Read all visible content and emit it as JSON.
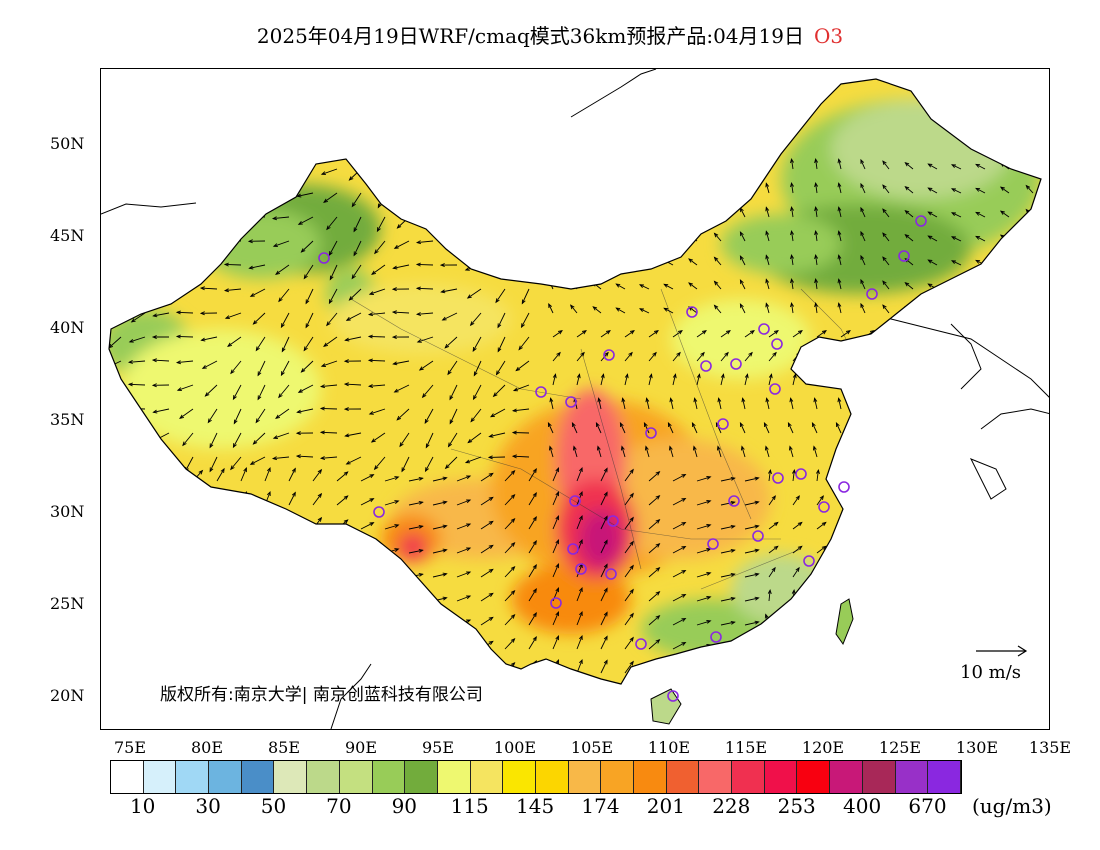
{
  "title": {
    "text": "2025年04月19日WRF/cmaq模式36km预报产品:04月19日",
    "species": "O3"
  },
  "axes": {
    "lat_labels": [
      "50N",
      "45N",
      "40N",
      "35N",
      "30N",
      "25N",
      "20N"
    ],
    "lon_labels": [
      "75E",
      "80E",
      "85E",
      "90E",
      "95E",
      "100E",
      "105E",
      "110E",
      "115E",
      "120E",
      "125E",
      "130E",
      "135E"
    ],
    "lon_range": [
      73.5,
      135
    ],
    "lat_range": [
      18,
      54
    ]
  },
  "colorbar": {
    "colors": [
      "#ffffff",
      "#d6f0fb",
      "#a0d8f5",
      "#6cb4e0",
      "#4a8ec8",
      "#dde8b8",
      "#bcd98a",
      "#c4e080",
      "#98cc58",
      "#72ac3c",
      "#eef870",
      "#f5e460",
      "#fae600",
      "#fcd600",
      "#f8b848",
      "#f8a424",
      "#f88a10",
      "#f06030",
      "#f86868",
      "#f03050",
      "#f0104a",
      "#f80010",
      "#c81878",
      "#a82858",
      "#9830c8",
      "#8a28e0"
    ],
    "labels": [
      "10",
      "30",
      "50",
      "70",
      "90",
      "115",
      "145",
      "174",
      "201",
      "228",
      "253",
      "400",
      "670"
    ],
    "unit": "(ug/m3)"
  },
  "wind_reference": {
    "label": "10 m/s"
  },
  "copyright": "版权所有:南京大学| 南京创蓝科技有限公司"
}
